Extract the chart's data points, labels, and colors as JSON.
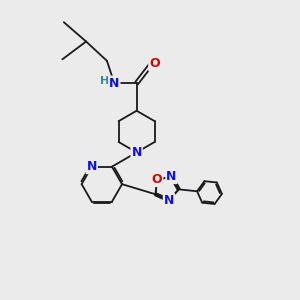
{
  "background_color": "#ebebeb",
  "figsize": [
    3.0,
    3.0
  ],
  "dpi": 100,
  "bond_color": "#1a1a1a",
  "bond_lw": 1.3,
  "N_color": "#1010ee",
  "O_color": "#dd0000",
  "H_color": "#3a8a8a",
  "font_size": 9.0,
  "xlim": [
    0,
    10
  ],
  "ylim": [
    0,
    10
  ]
}
